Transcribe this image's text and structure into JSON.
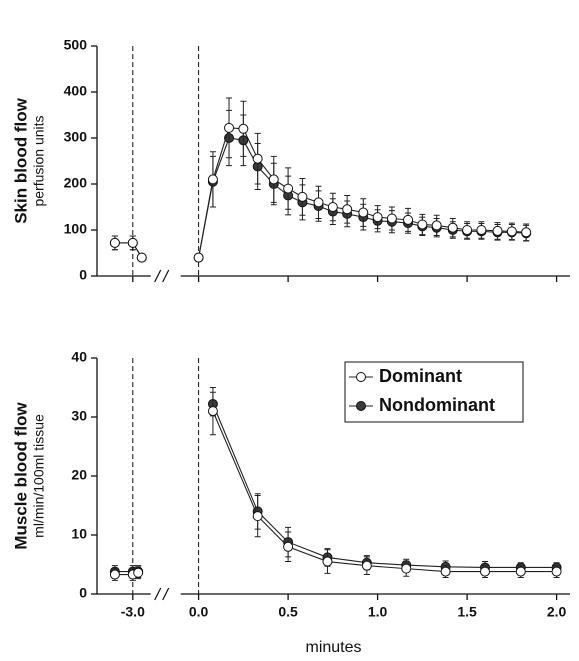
{
  "chart_data": [
    {
      "type": "line",
      "y_label": "Skin blood flow",
      "y_sublabel": "perfusion units",
      "x": [
        -3.1,
        -3.0,
        -2.95,
        0,
        0.08,
        0.17,
        0.25,
        0.33,
        0.42,
        0.5,
        0.58,
        0.67,
        0.75,
        0.83,
        0.92,
        1.0,
        1.08,
        1.17,
        1.25,
        1.33,
        1.42,
        1.5,
        1.58,
        1.67,
        1.75,
        1.83
      ],
      "series": [
        {
          "color": "#3a3a3a",
          "values": [
            72,
            72,
            40,
            40,
            205,
            300,
            295,
            238,
            200,
            175,
            160,
            152,
            140,
            135,
            128,
            120,
            118,
            115,
            108,
            105,
            100,
            97,
            97,
            95,
            95,
            93
          ],
          "errors": [
            15,
            15,
            5,
            5,
            55,
            60,
            55,
            50,
            45,
            42,
            38,
            33,
            28,
            28,
            28,
            24,
            24,
            22,
            20,
            20,
            18,
            17,
            17,
            17,
            17,
            17
          ]
        },
        {
          "color": "#ffffff",
          "values": [
            72,
            72,
            40,
            40,
            210,
            322,
            320,
            255,
            210,
            190,
            172,
            160,
            150,
            145,
            138,
            128,
            125,
            122,
            112,
            110,
            105,
            100,
            100,
            98,
            97,
            95
          ],
          "errors": [
            15,
            15,
            5,
            5,
            60,
            65,
            60,
            55,
            50,
            45,
            40,
            35,
            30,
            30,
            30,
            25,
            25,
            25,
            22,
            22,
            20,
            18,
            18,
            18,
            18,
            18
          ]
        }
      ],
      "xlim": [
        -3.2,
        2.05
      ],
      "x_break": [
        -2.9,
        -0.1
      ],
      "vlines": [
        -3.0,
        0.0
      ],
      "xticks": [
        -3.0,
        0,
        0.5,
        1,
        1.5,
        2
      ],
      "show_xtick_labels": false,
      "ylim": [
        0,
        500
      ],
      "yticks": [
        0,
        100,
        200,
        300,
        400,
        500
      ]
    },
    {
      "type": "line",
      "y_label": "Muscle blood flow",
      "y_sublabel": "ml/min/100ml tissue",
      "x_label": "minutes",
      "x": [
        -3.1,
        -3.0,
        -2.97,
        0.08,
        0.33,
        0.5,
        0.72,
        0.94,
        1.16,
        1.38,
        1.6,
        1.8,
        2.0
      ],
      "series": [
        {
          "name": "Nondominant",
          "color": "#3a3a3a",
          "values": [
            3.8,
            3.8,
            3.8,
            32.2,
            14,
            8.8,
            6.2,
            5.3,
            4.9,
            4.6,
            4.5,
            4.5,
            4.5
          ],
          "errors": [
            1,
            1,
            1,
            2,
            3,
            2.5,
            1.5,
            1.2,
            1,
            1,
            1,
            0.8,
            0.8
          ]
        },
        {
          "name": "Dominant",
          "color": "#ffffff",
          "values": [
            3.3,
            3.3,
            3.6,
            31,
            13.2,
            8,
            5.5,
            4.8,
            4.3,
            3.8,
            3.8,
            3.8,
            3.8
          ],
          "errors": [
            1,
            1,
            1,
            4,
            3.5,
            2.5,
            2,
            1.5,
            1.3,
            1,
            1,
            1,
            1
          ]
        }
      ],
      "legend": "upper right",
      "xlim": [
        -3.2,
        2.05
      ],
      "x_break": [
        -2.9,
        -0.1
      ],
      "vlines": [
        -3.0,
        0.0
      ],
      "xticks": [
        {
          "value": -3.0,
          "label": "-3.0"
        },
        {
          "value": 0,
          "label": "0.0"
        },
        {
          "value": 0.5,
          "label": "0.5"
        },
        {
          "value": 1,
          "label": "1.0"
        },
        {
          "value": 1.5,
          "label": "1.5"
        },
        {
          "value": 2,
          "label": "2.0"
        }
      ],
      "show_xtick_labels": true,
      "ylim": [
        0,
        40
      ],
      "yticks": [
        0,
        10,
        20,
        30,
        40
      ]
    }
  ]
}
